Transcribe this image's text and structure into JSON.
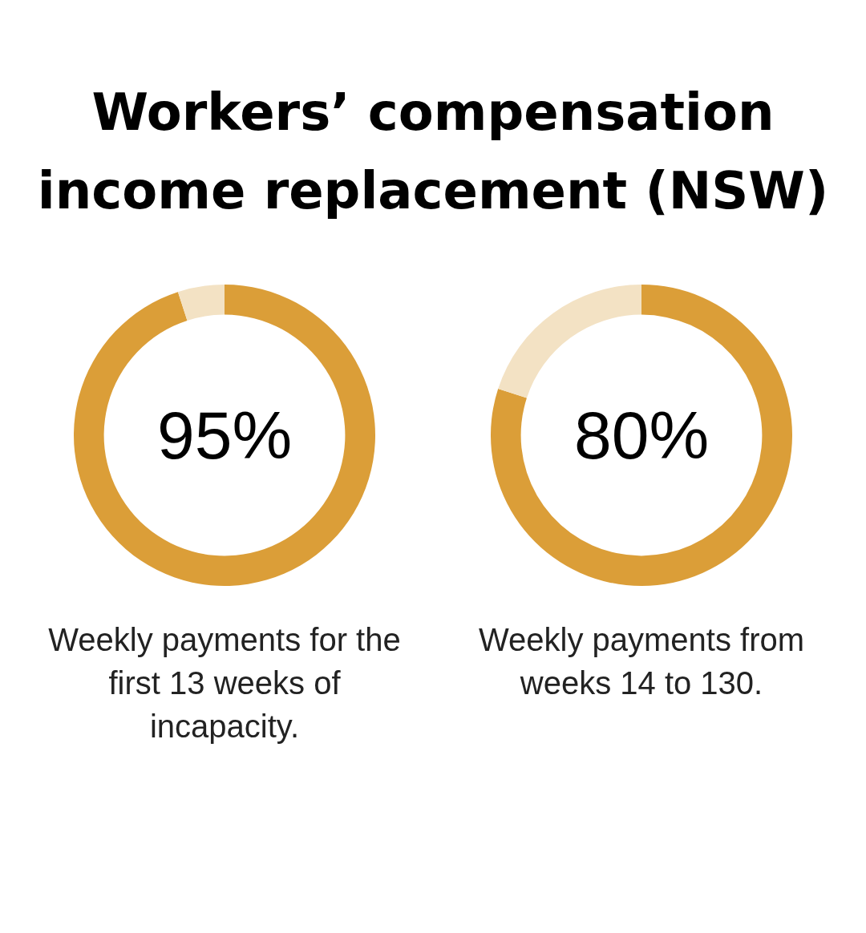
{
  "chart_data": [
    {
      "type": "donut",
      "title": "Workers’ compensation income replacement (NSW)",
      "categories": [
        null,
        null
      ],
      "values": [
        95,
        5
      ],
      "colors": [
        "#db9e38",
        "#f3e2c4"
      ],
      "value_labels": [
        "95%",
        null
      ],
      "annotations": [
        "Weekly payments for the first 13 weeks of incapacity."
      ],
      "legend": false
    },
    {
      "type": "donut",
      "categories": [
        null,
        null
      ],
      "values": [
        80,
        20
      ],
      "colors": [
        "#db9e38",
        "#f3e2c4"
      ],
      "value_labels": [
        "80%",
        null
      ],
      "annotations": [
        "Weekly payments from weeks 14 to 130."
      ],
      "legend": false
    }
  ]
}
